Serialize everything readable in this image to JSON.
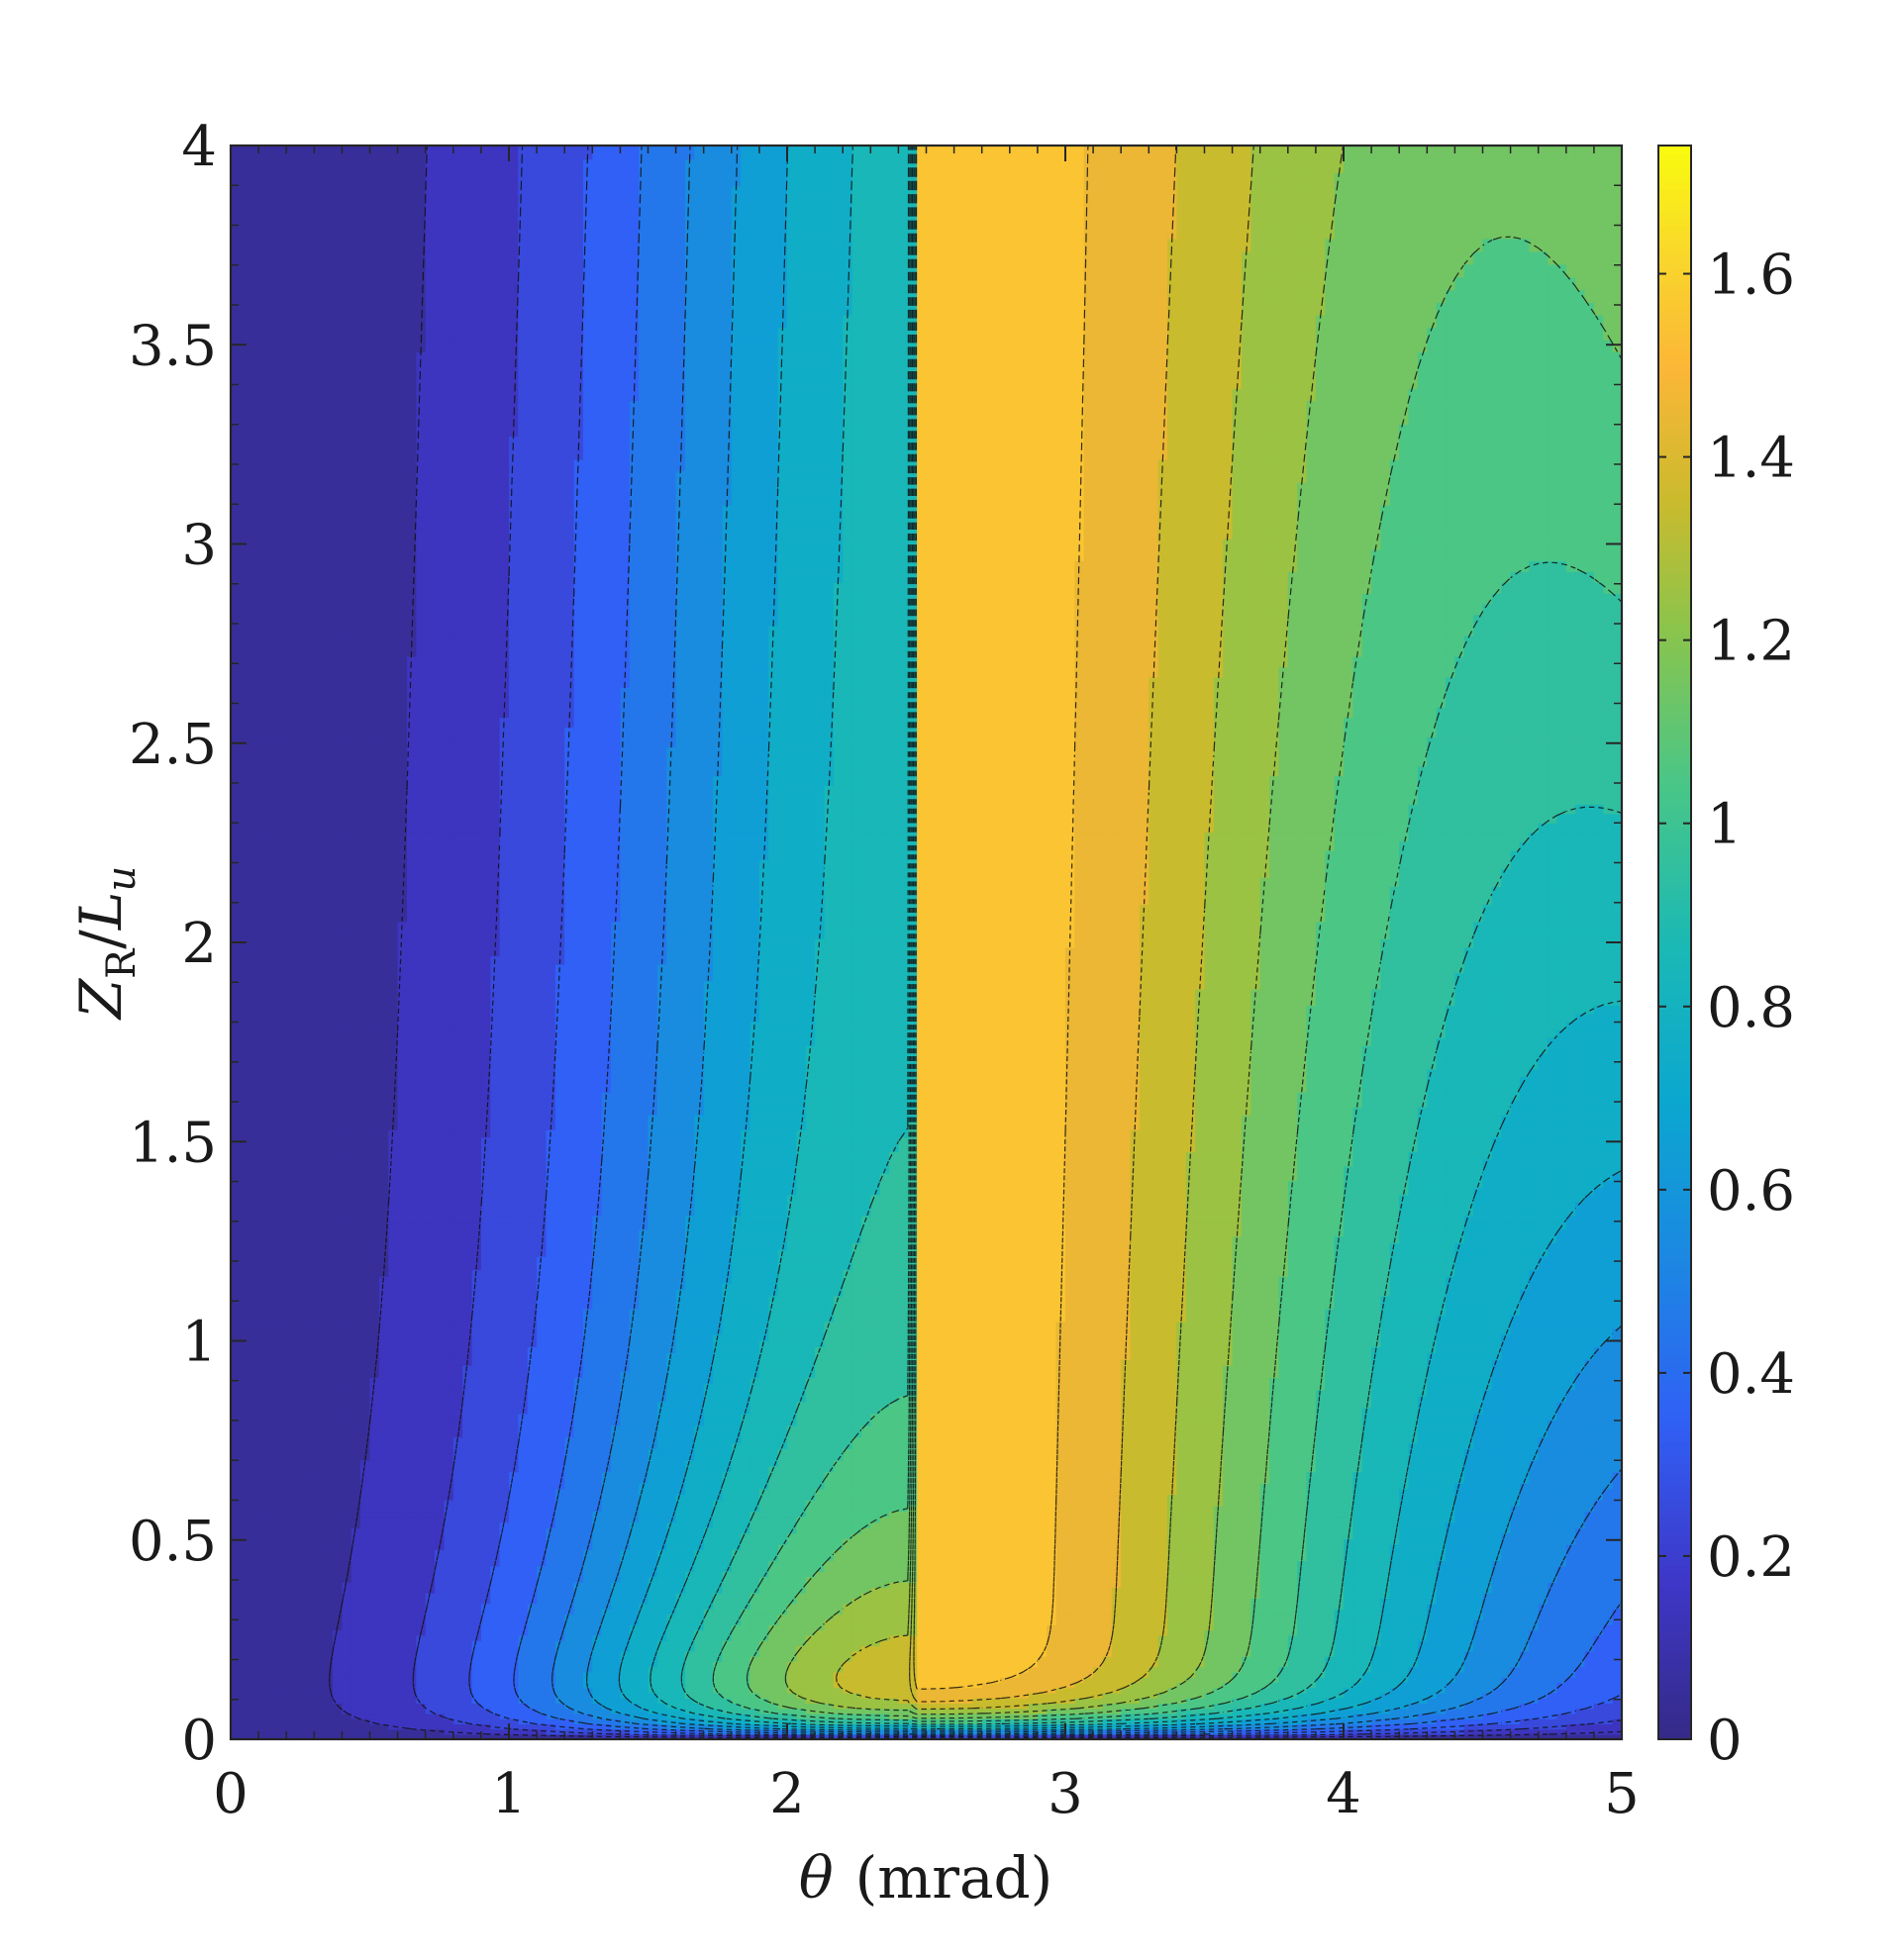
{
  "chart_data": {
    "type": "heatmap",
    "subtype": "filled-contour",
    "title": "",
    "xlabel": {
      "symbol": "θ",
      "unit": "(mrad)"
    },
    "ylabel": {
      "base1": "Z",
      "sub": "R",
      "sep": "/",
      "base2": "L",
      "sub2": "u"
    },
    "xlim": [
      0,
      5
    ],
    "ylim": [
      0,
      4
    ],
    "clim": [
      0,
      1.74
    ],
    "x_ticks": [
      0,
      1,
      2,
      3,
      4,
      5
    ],
    "x_tick_labels": [
      "0",
      "1",
      "2",
      "3",
      "4",
      "5"
    ],
    "y_ticks": [
      0,
      0.5,
      1,
      1.5,
      2,
      2.5,
      3,
      3.5,
      4
    ],
    "y_tick_labels": [
      "0",
      "0.5",
      "1",
      "1.5",
      "2",
      "2.5",
      "3",
      "3.5",
      "4"
    ],
    "colorbar_ticks": [
      0,
      0.2,
      0.4,
      0.6,
      0.8,
      1,
      1.2,
      1.4,
      1.6
    ],
    "colorbar_tick_labels": [
      "0",
      "0.2",
      "0.4",
      "0.6",
      "0.8",
      "1",
      "1.2",
      "1.4",
      "1.6"
    ],
    "colormap": "parula",
    "contour_levels": [
      0.1,
      0.2,
      0.3,
      0.4,
      0.5,
      0.6,
      0.7,
      0.8,
      0.9,
      1.0,
      1.1,
      1.2,
      1.3,
      1.4,
      1.5,
      1.6,
      1.7
    ],
    "contour_line_style": "dashed black",
    "peak": {
      "theta": 2.45,
      "zr_over_lu": 0.9,
      "value": 1.74
    },
    "grid": false,
    "legend": "none",
    "colorbar_position": "right"
  }
}
